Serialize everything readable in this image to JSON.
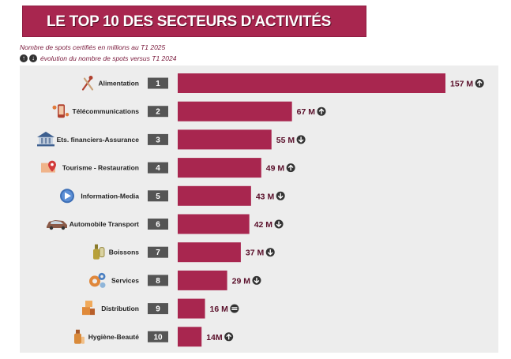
{
  "title": "LE TOP 10 DES SECTEURS D'ACTIVITÉS",
  "subtitle": "Nombre de spots certifiés en millions au T1 2025",
  "legend_text": "évolution du nombre de spots versus T1 2024",
  "colors": {
    "bar": "#a8264f",
    "banner": "#a8264f",
    "rank_box": "#555555",
    "value_text": "#5a0f2a",
    "trend_icon": "#333333"
  },
  "chart_data": {
    "type": "bar",
    "orientation": "horizontal",
    "categories": [
      "Alimentation",
      "Télécommunications",
      "Ets. financiers-Assurance",
      "Tourisme - Restauration",
      "Information-Media",
      "Automobile Transport",
      "Boissons",
      "Services",
      "Distribution",
      "Hygiène-Beauté"
    ],
    "ranks": [
      "1",
      "2",
      "3",
      "4",
      "5",
      "6",
      "7",
      "8",
      "9",
      "10"
    ],
    "values": [
      157,
      67,
      55,
      49,
      43,
      42,
      37,
      29,
      16,
      14
    ],
    "value_labels": [
      "157 M",
      "67 M",
      "55 M",
      "49 M",
      "43 M",
      "42 M",
      "37 M",
      "29 M",
      "16 M",
      "14M"
    ],
    "trends": [
      "up",
      "up",
      "down",
      "up",
      "down",
      "down",
      "down",
      "down",
      "stable",
      "up"
    ],
    "category_icons": [
      "cutlery-icon",
      "phone-icon",
      "bank-icon",
      "map-pin-icon",
      "play-icon",
      "car-icon",
      "bottle-icon",
      "gears-icon",
      "boxes-icon",
      "cosmetics-icon"
    ],
    "xlim": [
      0,
      157
    ],
    "grid": false,
    "legend": "top-left"
  }
}
